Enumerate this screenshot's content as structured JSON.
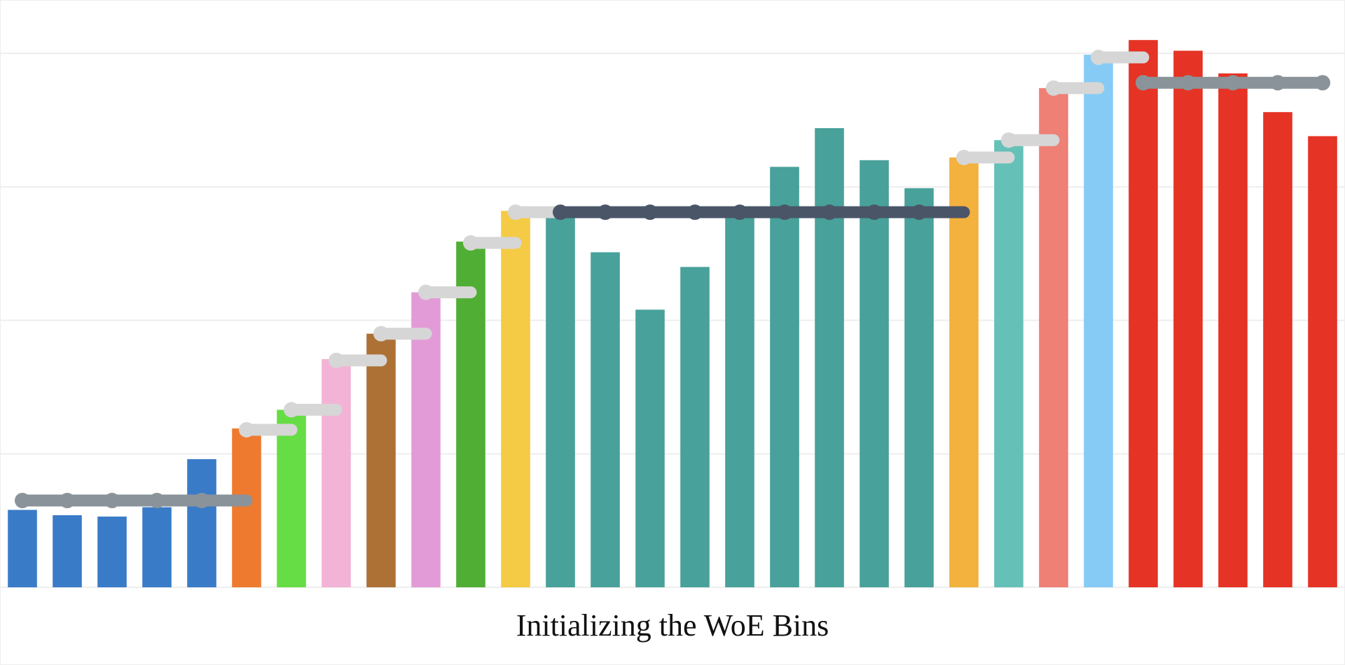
{
  "chart_data": {
    "type": "bar",
    "title": "Initializing the WoE Bins",
    "values": [
      0.58,
      0.54,
      0.53,
      0.6,
      0.96,
      1.19,
      1.33,
      1.71,
      1.9,
      2.21,
      2.59,
      2.82,
      2.79,
      2.51,
      2.08,
      2.4,
      2.79,
      3.15,
      3.44,
      3.2,
      2.99,
      3.22,
      3.35,
      3.74,
      3.99,
      4.1,
      4.02,
      3.85,
      3.56,
      3.38
    ],
    "colors": [
      "#3a7bc8",
      "#3a7bc8",
      "#3a7bc8",
      "#3a7bc8",
      "#3a7bc8",
      "#ee7a30",
      "#66dd44",
      "#f3b3d6",
      "#ad7136",
      "#e39bd8",
      "#4fae33",
      "#f5cb45",
      "#48a19a",
      "#48a19a",
      "#48a19a",
      "#48a19a",
      "#48a19a",
      "#48a19a",
      "#48a19a",
      "#48a19a",
      "#48a19a",
      "#f3b13e",
      "#65c1b8",
      "#ee8075",
      "#85cbf5",
      "#e53325",
      "#e53325",
      "#e53325",
      "#e53325",
      "#e53325"
    ],
    "series": [
      {
        "color": "#8a9399",
        "values": [
          0.65,
          0.65,
          0.65,
          0.65,
          0.65,
          null,
          null,
          null,
          null,
          null,
          null,
          null,
          null,
          null,
          null,
          null,
          null,
          null,
          null,
          null,
          null,
          null,
          null,
          null,
          null,
          null,
          null,
          null,
          null,
          null
        ]
      },
      {
        "color": "#d6d6d6",
        "values": [
          null,
          null,
          null,
          null,
          null,
          1.18,
          1.33,
          1.7,
          1.9,
          2.21,
          2.58,
          2.81,
          null,
          null,
          null,
          null,
          null,
          null,
          null,
          null,
          null,
          3.22,
          3.35,
          3.74,
          3.97,
          null,
          null,
          null,
          null,
          null
        ]
      },
      {
        "color": "#4a5568",
        "values": [
          null,
          null,
          null,
          null,
          null,
          null,
          null,
          null,
          null,
          null,
          null,
          null,
          2.81,
          2.81,
          2.81,
          2.81,
          2.81,
          2.81,
          2.81,
          2.81,
          2.81,
          null,
          null,
          null,
          null,
          null,
          null,
          null,
          null,
          null
        ]
      },
      {
        "color": "#8a9399",
        "values": [
          null,
          null,
          null,
          null,
          null,
          null,
          null,
          null,
          null,
          null,
          null,
          null,
          null,
          null,
          null,
          null,
          null,
          null,
          null,
          null,
          null,
          null,
          null,
          null,
          null,
          3.78,
          3.78,
          3.78,
          3.78,
          3.78
        ]
      }
    ],
    "ylim": [
      0,
      4.4
    ],
    "yticks": [
      0,
      1,
      2,
      3,
      4
    ],
    "grid": true
  }
}
